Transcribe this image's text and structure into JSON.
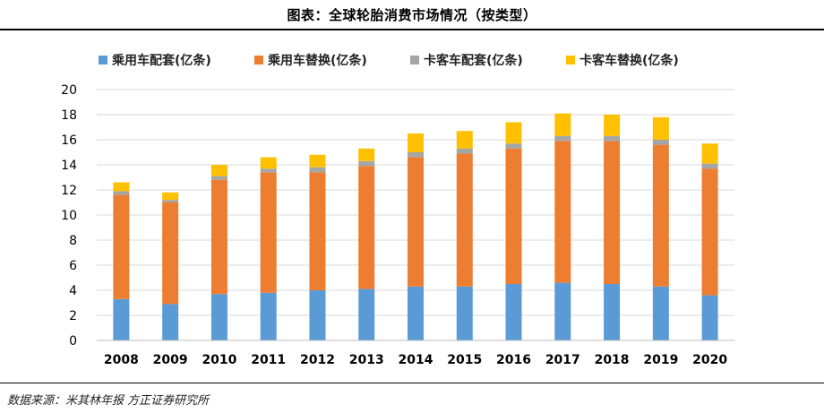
{
  "title": "图表：全球轮胎消费市场情况（按类型）",
  "source": "数据来源：米其林年报  方正证券研究所",
  "chart_data": {
    "type": "bar",
    "stacked": true,
    "categories": [
      "2008",
      "2009",
      "2010",
      "2011",
      "2012",
      "2013",
      "2014",
      "2015",
      "2016",
      "2017",
      "2018",
      "2019",
      "2020"
    ],
    "series": [
      {
        "name": "乘用车配套(亿条)",
        "color": "#5B9BD5",
        "values": [
          3.3,
          2.9,
          3.7,
          3.8,
          4.0,
          4.1,
          4.3,
          4.3,
          4.5,
          4.6,
          4.5,
          4.3,
          3.6
        ]
      },
      {
        "name": "乘用车替换(亿条)",
        "color": "#ED7D31",
        "values": [
          8.3,
          8.1,
          9.1,
          9.6,
          9.4,
          9.8,
          10.3,
          10.6,
          10.8,
          11.3,
          11.4,
          11.3,
          10.1
        ]
      },
      {
        "name": "卡客车配套(亿条)",
        "color": "#A5A5A5",
        "values": [
          0.3,
          0.2,
          0.3,
          0.3,
          0.4,
          0.4,
          0.4,
          0.4,
          0.4,
          0.4,
          0.4,
          0.4,
          0.4
        ]
      },
      {
        "name": "卡客车替换(亿条)",
        "color": "#FFC000",
        "values": [
          0.7,
          0.6,
          0.9,
          0.9,
          1.0,
          1.0,
          1.5,
          1.4,
          1.7,
          1.8,
          1.7,
          1.8,
          1.6
        ]
      }
    ],
    "ylim": [
      0,
      20
    ],
    "yticks": [
      0,
      2,
      4,
      6,
      8,
      10,
      12,
      14,
      16,
      18,
      20
    ],
    "grid": true,
    "legend_position": "top"
  }
}
